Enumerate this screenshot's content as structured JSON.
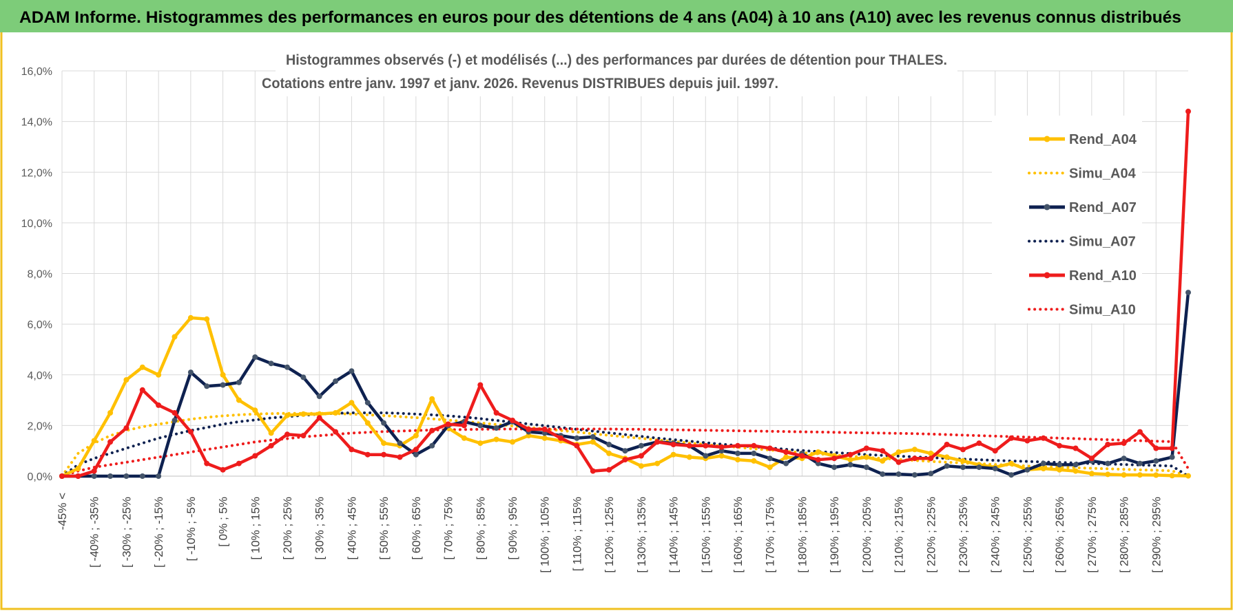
{
  "banner": {
    "title": "ADAM Informe. Histogrammes des performances en euros pour des détentions de 4 ans (A04) à 10 ans (A10) avec les revenus connus distribués",
    "background": "#7dcc79",
    "border_color": "#f0c020"
  },
  "chart_data": {
    "type": "line",
    "title": "Histogrammes observés (-) et modélisés (...) des performances par durées de détention pour THALES.",
    "subtitle": "Cotations entre janv. 1997 et janv. 2026. Revenus DISTRIBUES depuis juil. 1997.",
    "xlabel": "",
    "ylabel": "",
    "ylim": [
      0,
      16
    ],
    "y_ticks": [
      "0,0%",
      "2,0%",
      "4,0%",
      "6,0%",
      "8,0%",
      "10,0%",
      "12,0%",
      "14,0%",
      "16,0%"
    ],
    "grid": true,
    "legend_position": "right",
    "x_labels": [
      "-45% <",
      "[ -40% ; -35%",
      "[ -30% ; -25%",
      "[ -20% ; -15%",
      "[ -10% ; -5%",
      "[ 0% ; 5%",
      "[ 10% ; 15%",
      "[ 20% ; 25%",
      "[ 30% ; 35%",
      "[ 40% ; 45%",
      "[ 50% ; 55%",
      "[ 60% ; 65%",
      "[ 70% ; 75%",
      "[ 80% ; 85%",
      "[ 90% ; 95%",
      "[ 100% ; 105%",
      "[ 110% ; 115%",
      "[ 120% ; 125%",
      "[ 130% ; 135%",
      "[ 140% ; 145%",
      "[ 150% ; 155%",
      "[ 160% ; 165%",
      "[ 170% ; 175%",
      "[ 180% ; 185%",
      "[ 190% ; 195%",
      "[ 200% ; 205%",
      "[ 210% ; 215%",
      "[ 220% ; 225%",
      "[ 230% ; 235%",
      "[ 240% ; 245%",
      "[ 250% ; 255%",
      "[ 260% ; 265%",
      "[ 270% ; 275%",
      "[ 280% ; 285%",
      "[ 290% ; 295%"
    ],
    "series": [
      {
        "name": "Rend_A04",
        "color": "#ffc000",
        "style": "solid",
        "markers": true,
        "values": [
          0,
          0.3,
          1.4,
          2.5,
          3.8,
          4.3,
          4.0,
          5.5,
          6.25,
          6.2,
          4.0,
          3.0,
          2.6,
          1.7,
          2.4,
          2.45,
          2.45,
          2.5,
          2.9,
          2.1,
          1.3,
          1.2,
          1.6,
          3.05,
          1.9,
          1.5,
          1.3,
          1.45,
          1.35,
          1.6,
          1.5,
          1.4,
          1.25,
          1.35,
          0.9,
          0.7,
          0.4,
          0.5,
          0.85,
          0.75,
          0.7,
          0.8,
          0.65,
          0.6,
          0.35,
          0.75,
          0.7,
          0.95,
          0.8,
          0.65,
          0.75,
          0.6,
          0.95,
          1.05,
          0.9,
          0.75,
          0.6,
          0.45,
          0.35,
          0.5,
          0.25,
          0.3,
          0.25,
          0.2,
          0.1,
          0.07,
          0.05,
          0.05,
          0.04,
          0.02,
          0.01
        ]
      },
      {
        "name": "Simu_A04",
        "color": "#ffc000",
        "style": "dotted",
        "markers": false,
        "values": [
          0,
          0.9,
          1.3,
          1.6,
          1.8,
          1.95,
          2.05,
          2.15,
          2.25,
          2.32,
          2.38,
          2.42,
          2.45,
          2.47,
          2.48,
          2.48,
          2.48,
          2.47,
          2.45,
          2.42,
          2.39,
          2.35,
          2.31,
          2.26,
          2.21,
          2.16,
          2.1,
          2.04,
          1.98,
          1.92,
          1.86,
          1.8,
          1.74,
          1.67,
          1.61,
          1.55,
          1.49,
          1.43,
          1.37,
          1.31,
          1.25,
          1.19,
          1.14,
          1.08,
          1.03,
          0.98,
          0.93,
          0.88,
          0.83,
          0.79,
          0.74,
          0.7,
          0.66,
          0.62,
          0.58,
          0.55,
          0.52,
          0.49,
          0.46,
          0.43,
          0.4,
          0.37,
          0.35,
          0.33,
          0.31,
          0.29,
          0.27,
          0.25,
          0.23,
          0.21,
          0
        ]
      },
      {
        "name": "Rend_A07",
        "color": "#0e2150",
        "style": "solid",
        "markers": true,
        "values": [
          0,
          0,
          0,
          0,
          0,
          0,
          0,
          2.2,
          4.1,
          3.55,
          3.6,
          3.7,
          4.7,
          4.45,
          4.3,
          3.9,
          3.15,
          3.75,
          4.15,
          2.9,
          2.1,
          1.3,
          0.85,
          1.2,
          2.0,
          2.15,
          2.0,
          1.9,
          2.15,
          1.75,
          1.7,
          1.6,
          1.5,
          1.55,
          1.25,
          1.0,
          1.2,
          1.35,
          1.3,
          1.2,
          0.8,
          1.0,
          0.9,
          0.9,
          0.7,
          0.5,
          0.9,
          0.5,
          0.35,
          0.45,
          0.35,
          0.08,
          0.08,
          0.05,
          0.1,
          0.4,
          0.35,
          0.35,
          0.3,
          0.05,
          0.25,
          0.5,
          0.45,
          0.45,
          0.6,
          0.5,
          0.7,
          0.5,
          0.6,
          0.75,
          7.25
        ]
      },
      {
        "name": "Simu_A07",
        "color": "#0e2150",
        "style": "dotted",
        "markers": false,
        "values": [
          0,
          0.45,
          0.7,
          0.9,
          1.1,
          1.3,
          1.5,
          1.65,
          1.8,
          1.92,
          2.05,
          2.15,
          2.22,
          2.3,
          2.35,
          2.4,
          2.45,
          2.48,
          2.5,
          2.5,
          2.5,
          2.48,
          2.45,
          2.42,
          2.38,
          2.33,
          2.27,
          2.2,
          2.13,
          2.06,
          1.99,
          1.92,
          1.85,
          1.78,
          1.71,
          1.64,
          1.57,
          1.5,
          1.44,
          1.38,
          1.32,
          1.26,
          1.21,
          1.16,
          1.11,
          1.06,
          1.01,
          0.97,
          0.93,
          0.89,
          0.85,
          0.82,
          0.79,
          0.76,
          0.73,
          0.7,
          0.67,
          0.65,
          0.62,
          0.6,
          0.58,
          0.56,
          0.54,
          0.52,
          0.5,
          0.48,
          0.46,
          0.44,
          0.42,
          0.4,
          0
        ]
      },
      {
        "name": "Rend_A10",
        "color": "#ee1c1c",
        "style": "solid",
        "markers": true,
        "values": [
          0,
          0,
          0.2,
          1.35,
          1.9,
          3.4,
          2.8,
          2.5,
          1.75,
          0.5,
          0.25,
          0.5,
          0.8,
          1.2,
          1.65,
          1.6,
          2.3,
          1.75,
          1.05,
          0.85,
          0.85,
          0.75,
          1.05,
          1.8,
          2.05,
          2.0,
          3.6,
          2.5,
          2.2,
          1.85,
          1.85,
          1.5,
          1.2,
          0.2,
          0.25,
          0.65,
          0.8,
          1.35,
          1.25,
          1.2,
          1.2,
          1.15,
          1.2,
          1.2,
          1.1,
          0.95,
          0.8,
          0.65,
          0.7,
          0.85,
          1.1,
          1.0,
          0.55,
          0.7,
          0.7,
          1.25,
          1.05,
          1.3,
          1.0,
          1.5,
          1.4,
          1.5,
          1.2,
          1.1,
          0.7,
          1.25,
          1.3,
          1.75,
          1.1,
          1.1,
          14.4
        ]
      },
      {
        "name": "Simu_A10",
        "color": "#ee1c1c",
        "style": "dotted",
        "markers": false,
        "values": [
          0,
          0.2,
          0.35,
          0.45,
          0.55,
          0.65,
          0.75,
          0.85,
          0.95,
          1.05,
          1.15,
          1.25,
          1.35,
          1.42,
          1.48,
          1.55,
          1.6,
          1.65,
          1.7,
          1.73,
          1.76,
          1.78,
          1.8,
          1.82,
          1.83,
          1.84,
          1.85,
          1.86,
          1.86,
          1.86,
          1.86,
          1.86,
          1.86,
          1.86,
          1.86,
          1.85,
          1.85,
          1.84,
          1.83,
          1.82,
          1.81,
          1.8,
          1.79,
          1.78,
          1.77,
          1.76,
          1.75,
          1.74,
          1.73,
          1.72,
          1.71,
          1.7,
          1.69,
          1.68,
          1.66,
          1.64,
          1.62,
          1.6,
          1.58,
          1.56,
          1.54,
          1.52,
          1.5,
          1.48,
          1.46,
          1.44,
          1.42,
          1.4,
          1.38,
          1.36,
          0.3
        ]
      }
    ]
  }
}
